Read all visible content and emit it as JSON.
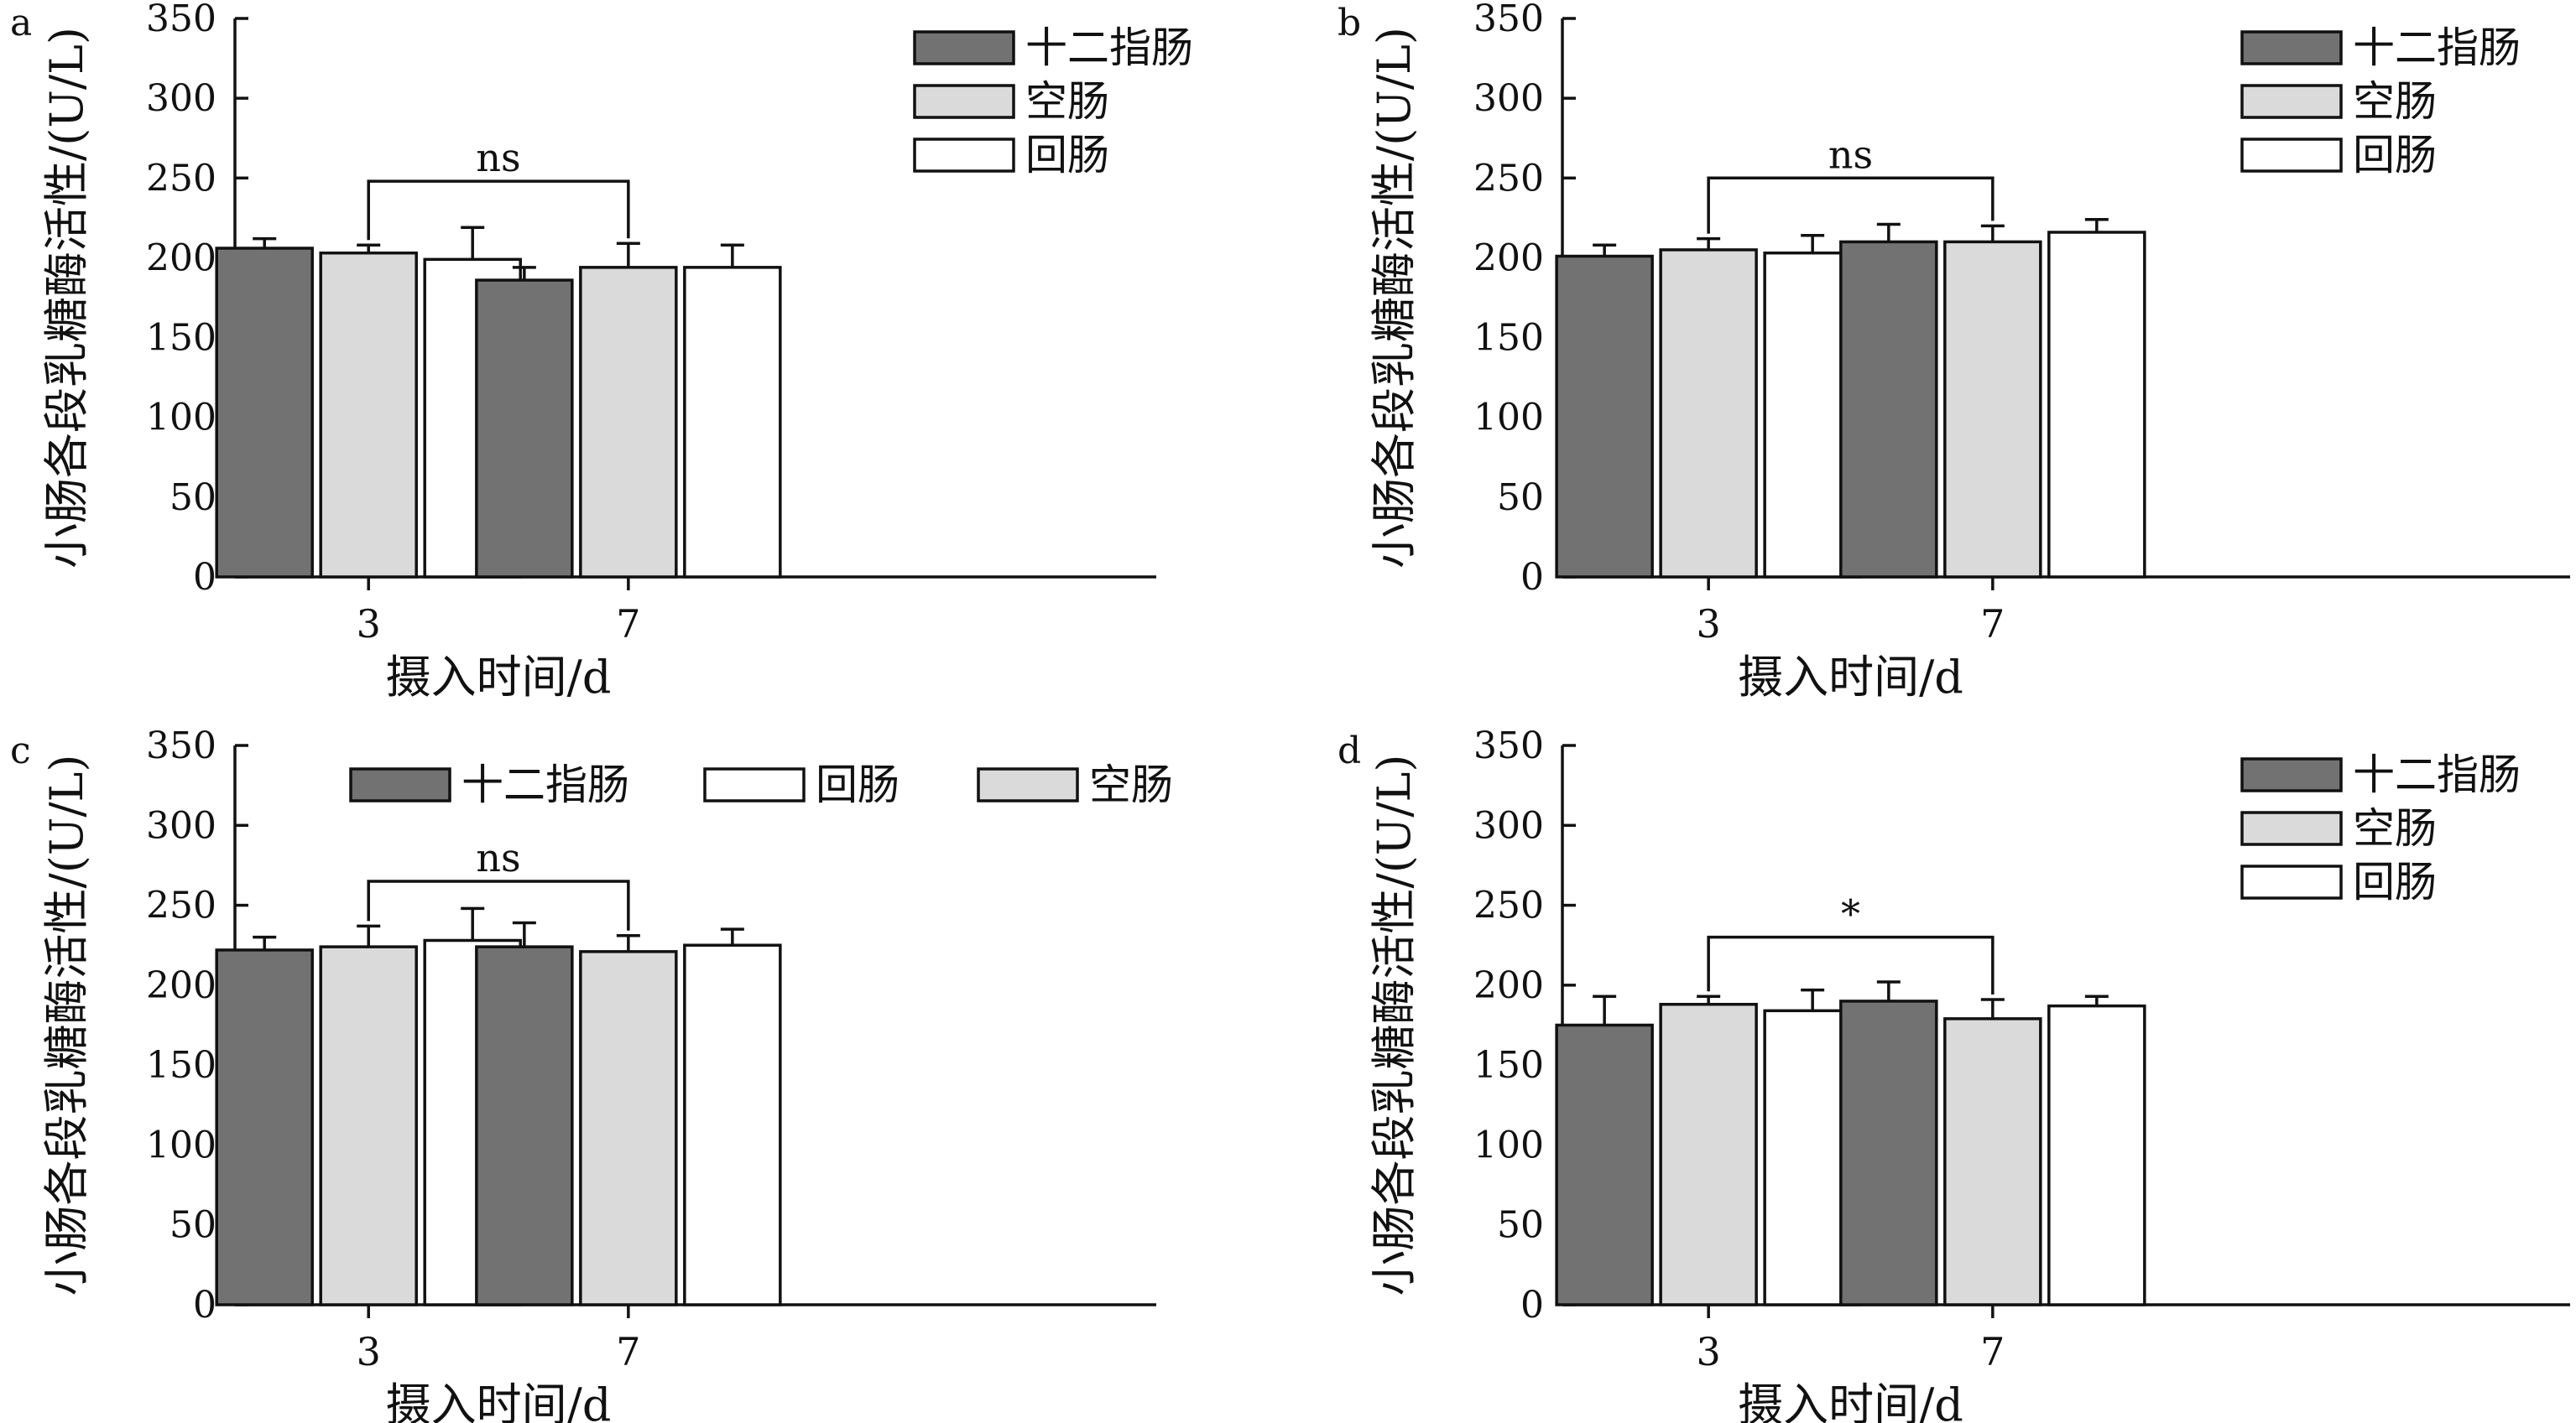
{
  "chart_data": [
    {
      "panel_label": "a",
      "type": "bar",
      "categories": [
        "3",
        "7"
      ],
      "series": [
        {
          "name": "十二指肠",
          "values": [
            206,
            186
          ],
          "errors": [
            6,
            8
          ],
          "color": "#727272"
        },
        {
          "name": "空肠",
          "values": [
            203,
            194
          ],
          "errors": [
            5,
            15
          ],
          "color": "#dadada"
        },
        {
          "name": "回肠",
          "values": [
            199,
            194
          ],
          "errors": [
            20,
            14
          ],
          "color": "#ffffff"
        }
      ],
      "xlabel": "摄入时间/d",
      "ylabel": "小肠各段乳糖酶活性/(U/L)",
      "ylim": [
        0,
        350
      ],
      "yticks": [
        "0",
        "50",
        "100",
        "150",
        "200",
        "250",
        "300",
        "350"
      ],
      "legend_position": "top-right",
      "legend_layout": "vertical",
      "legend_order": [
        0,
        1,
        2
      ],
      "annotation": {
        "text": "ns",
        "bracket_y": 248,
        "from_category": "3",
        "to_category": "7"
      }
    },
    {
      "panel_label": "b",
      "type": "bar",
      "categories": [
        "3",
        "7"
      ],
      "series": [
        {
          "name": "十二指肠",
          "values": [
            201,
            210
          ],
          "errors": [
            7,
            11
          ],
          "color": "#727272"
        },
        {
          "name": "空肠",
          "values": [
            205,
            210
          ],
          "errors": [
            7,
            10
          ],
          "color": "#dadada"
        },
        {
          "name": "回肠",
          "values": [
            203,
            216
          ],
          "errors": [
            11,
            8
          ],
          "color": "#ffffff"
        }
      ],
      "xlabel": "摄入时间/d",
      "ylabel": "小肠各段乳糖酶活性/(U/L)",
      "ylim": [
        0,
        350
      ],
      "yticks": [
        "0",
        "50",
        "100",
        "150",
        "200",
        "250",
        "300",
        "350"
      ],
      "legend_position": "top-right",
      "legend_layout": "vertical",
      "legend_order": [
        0,
        1,
        2
      ],
      "annotation": {
        "text": "ns",
        "bracket_y": 250,
        "from_category": "3",
        "to_category": "7"
      }
    },
    {
      "panel_label": "c",
      "type": "bar",
      "categories": [
        "3",
        "7"
      ],
      "series": [
        {
          "name": "十二指肠",
          "values": [
            222,
            224
          ],
          "errors": [
            8,
            15
          ],
          "color": "#727272"
        },
        {
          "name": "空肠",
          "values": [
            224,
            221
          ],
          "errors": [
            13,
            10
          ],
          "color": "#dadada"
        },
        {
          "name": "回肠",
          "values": [
            228,
            225
          ],
          "errors": [
            20,
            10
          ],
          "color": "#ffffff"
        }
      ],
      "xlabel": "摄入时间/d",
      "ylabel": "小肠各段乳糖酶活性/(U/L)",
      "ylim": [
        0,
        350
      ],
      "yticks": [
        "0",
        "50",
        "100",
        "150",
        "200",
        "250",
        "300",
        "350"
      ],
      "legend_position": "top",
      "legend_layout": "horizontal",
      "legend_order": [
        0,
        2,
        1
      ],
      "annotation": {
        "text": "ns",
        "bracket_y": 265,
        "from_category": "3",
        "to_category": "7"
      }
    },
    {
      "panel_label": "d",
      "type": "bar",
      "categories": [
        "3",
        "7"
      ],
      "series": [
        {
          "name": "十二指肠",
          "values": [
            175,
            190
          ],
          "errors": [
            18,
            12
          ],
          "color": "#727272"
        },
        {
          "name": "空肠",
          "values": [
            188,
            179
          ],
          "errors": [
            5,
            12
          ],
          "color": "#dadada"
        },
        {
          "name": "回肠",
          "values": [
            184,
            187
          ],
          "errors": [
            13,
            6
          ],
          "color": "#ffffff"
        }
      ],
      "xlabel": "摄入时间/d",
      "ylabel": "小肠各段乳糖酶活性/(U/L)",
      "ylim": [
        0,
        350
      ],
      "yticks": [
        "0",
        "50",
        "100",
        "150",
        "200",
        "250",
        "300",
        "350"
      ],
      "legend_position": "top-right",
      "legend_layout": "vertical",
      "legend_order": [
        0,
        1,
        2
      ],
      "annotation": {
        "text": "*",
        "bracket_y": 230,
        "from_category": "3",
        "to_category": "7"
      }
    }
  ]
}
